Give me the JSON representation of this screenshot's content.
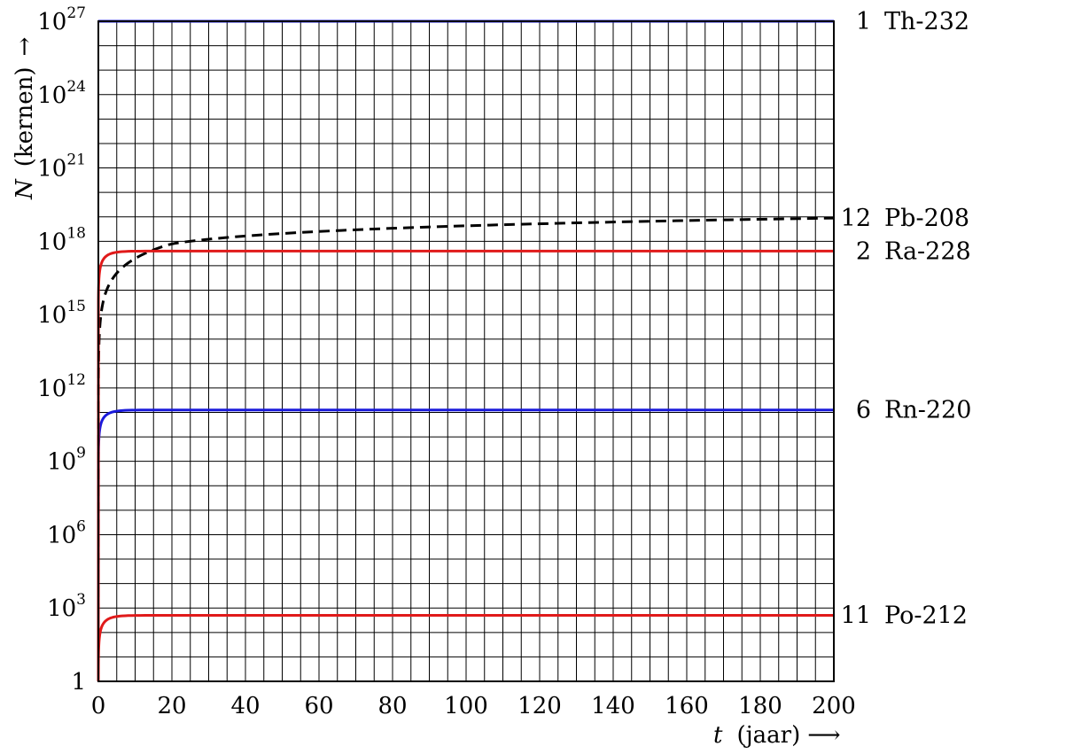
{
  "chart_data": {
    "type": "line",
    "x_axis": {
      "label": "t",
      "unit": "(jaar)",
      "arrow": "⟶",
      "range": [
        0,
        200
      ],
      "ticks": [
        0,
        20,
        40,
        60,
        80,
        100,
        120,
        140,
        160,
        180,
        200
      ],
      "minor_step": 5
    },
    "y_axis": {
      "label": "N",
      "unit": "(kernen)",
      "arrow": "→",
      "scale": "log",
      "range": [
        1,
        1e+27
      ],
      "ticks": [
        {
          "value": 1,
          "base": "1",
          "exp": ""
        },
        {
          "value": 1000.0,
          "base": "10",
          "exp": "3"
        },
        {
          "value": 1000000.0,
          "base": "10",
          "exp": "6"
        },
        {
          "value": 1000000000.0,
          "base": "10",
          "exp": "9"
        },
        {
          "value": 1000000000000.0,
          "base": "10",
          "exp": "12"
        },
        {
          "value": 1000000000000000.0,
          "base": "10",
          "exp": "15"
        },
        {
          "value": 1e+18,
          "base": "10",
          "exp": "18"
        },
        {
          "value": 1e+21,
          "base": "10",
          "exp": "21"
        },
        {
          "value": 1e+24,
          "base": "10",
          "exp": "24"
        },
        {
          "value": 1e+27,
          "base": "10",
          "exp": "27"
        }
      ],
      "minor_step_decades": 1
    },
    "grid": true,
    "series": [
      {
        "name": "1  Th-232",
        "color": "#1a1adb",
        "style": "solid",
        "kind": "constant",
        "log10_final": 27
      },
      {
        "name": "12  Pb-208",
        "color": "#000000",
        "style": "dashed",
        "kind": "growth",
        "log10_at_20": 17.9,
        "log10_at_200": 18.95
      },
      {
        "name": "2  Ra-228",
        "color": "#e01a1a",
        "style": "solid",
        "kind": "saturating",
        "log10_final": 17.6,
        "tau_years": 2.2
      },
      {
        "name": "6  Rn-220",
        "color": "#1a1adb",
        "style": "solid",
        "kind": "saturating",
        "log10_final": 11.1,
        "tau_years": 2.2
      },
      {
        "name": "11  Po-212",
        "color": "#e01a1a",
        "style": "solid",
        "kind": "saturating",
        "log10_final": 2.7,
        "tau_years": 2.2
      }
    ]
  }
}
